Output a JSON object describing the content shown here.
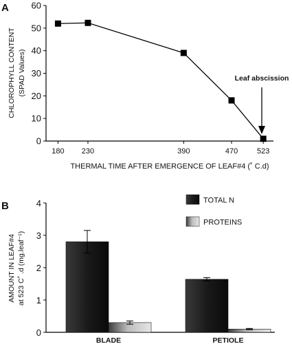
{
  "chart_data": [
    {
      "type": "line",
      "panel_label": "A",
      "xlabel": "THERMAL TIME AFTER EMERGENCE OF LEAF#4 (˚ C.d)",
      "ylabel": "CHLOROPHYLL CONTENT",
      "ylabel2": "(SPAD Values)",
      "ylim": [
        0,
        60
      ],
      "yticks": [
        "0",
        "10",
        "20",
        "30",
        "40",
        "50",
        "60"
      ],
      "xticks": [
        "180",
        "230",
        "390",
        "470",
        "523"
      ],
      "x": [
        180,
        230,
        390,
        470,
        523
      ],
      "values": [
        52,
        52.3,
        39,
        18,
        1
      ],
      "errors": [
        0.8,
        0.8,
        1.0,
        1.2,
        0.5
      ],
      "annotation": "Leaf abscission",
      "grid": false
    },
    {
      "type": "bar",
      "panel_label": "B",
      "ylabel": "AMOUNT IN LEAF#4",
      "ylabel2": "at 523 C˚ .d (mg.leaf⁻¹)",
      "ylim": [
        0,
        4
      ],
      "yticks": [
        "0",
        "1",
        "2",
        "3",
        "4"
      ],
      "categories": [
        "BLADE",
        "PETIOLE"
      ],
      "series": [
        {
          "name": "TOTAL N",
          "values": [
            2.8,
            1.64
          ],
          "errors": [
            0.35,
            0.05
          ],
          "color": "#1c1c1c"
        },
        {
          "name": "PROTEINS",
          "values": [
            0.3,
            0.1
          ],
          "errors": [
            0.05,
            0.02
          ],
          "color": "#8a8a8a"
        }
      ],
      "legend_position": "top-right",
      "grid": false
    }
  ]
}
